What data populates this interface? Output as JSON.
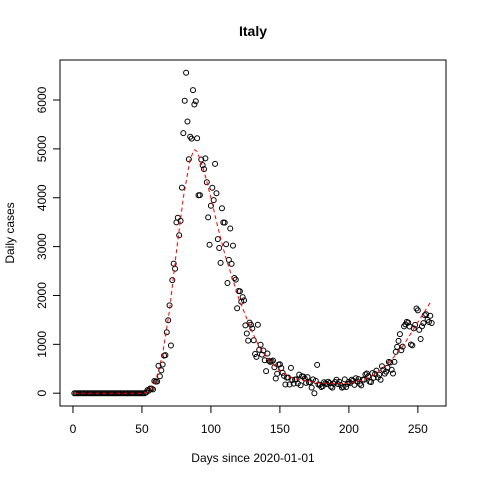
{
  "chart_data": {
    "type": "scatter",
    "title": "Italy",
    "xlabel": "Days since 2020-01-01",
    "ylabel": "Daily cases",
    "xlim": [
      -9.4,
      270.4
    ],
    "ylim": [
      -262,
      6819
    ],
    "xticks": [
      0,
      50,
      100,
      150,
      200,
      250
    ],
    "yticks": [
      0,
      1000,
      2000,
      3000,
      4000,
      5000,
      6000
    ],
    "series": [
      {
        "type": "scatter",
        "color": "#000000",
        "x": [
          1,
          2,
          3,
          4,
          5,
          6,
          7,
          8,
          9,
          10,
          11,
          12,
          13,
          14,
          15,
          16,
          17,
          18,
          19,
          20,
          21,
          22,
          23,
          24,
          25,
          26,
          27,
          28,
          29,
          30,
          31,
          32,
          33,
          34,
          35,
          36,
          37,
          38,
          39,
          40,
          41,
          42,
          43,
          44,
          45,
          46,
          47,
          48,
          49,
          50,
          51,
          52,
          53,
          54,
          55,
          56,
          57,
          58,
          59,
          60,
          61,
          62,
          63,
          64,
          65,
          66,
          67,
          68,
          69,
          70,
          71,
          72,
          73,
          74,
          75,
          76,
          77,
          78,
          79,
          80,
          81,
          82,
          83,
          84,
          85,
          86,
          87,
          88,
          89,
          90,
          91,
          92,
          93,
          94,
          95,
          96,
          97,
          98,
          99,
          100,
          101,
          102,
          103,
          104,
          105,
          106,
          107,
          108,
          109,
          110,
          111,
          112,
          113,
          114,
          115,
          116,
          117,
          118,
          119,
          120,
          121,
          122,
          123,
          124,
          125,
          126,
          127,
          128,
          129,
          130,
          131,
          132,
          133,
          134,
          135,
          136,
          137,
          138,
          139,
          140,
          141,
          142,
          143,
          144,
          145,
          146,
          147,
          148,
          149,
          150,
          151,
          152,
          153,
          154,
          155,
          156,
          157,
          158,
          159,
          160,
          161,
          162,
          163,
          164,
          165,
          166,
          167,
          168,
          169,
          170,
          171,
          172,
          173,
          174,
          175,
          176,
          177,
          178,
          179,
          180,
          181,
          182,
          183,
          184,
          185,
          186,
          187,
          188,
          189,
          190,
          191,
          192,
          193,
          194,
          195,
          196,
          197,
          198,
          199,
          200,
          201,
          202,
          203,
          204,
          205,
          206,
          207,
          208,
          209,
          210,
          211,
          212,
          213,
          214,
          215,
          216,
          217,
          218,
          219,
          220,
          221,
          222,
          223,
          224,
          225,
          226,
          227,
          228,
          229,
          230,
          231,
          232,
          233,
          234,
          235,
          236,
          237,
          238,
          239,
          240,
          241,
          242,
          243,
          244,
          245,
          246,
          247,
          248,
          249,
          250,
          251,
          252,
          253,
          254,
          255,
          256,
          257,
          258,
          259,
          260
        ],
        "values": [
          0,
          0,
          0,
          0,
          0,
          0,
          0,
          0,
          0,
          0,
          0,
          0,
          0,
          0,
          0,
          0,
          0,
          0,
          0,
          0,
          0,
          0,
          0,
          0,
          0,
          0,
          0,
          0,
          0,
          0,
          0,
          0,
          0,
          0,
          0,
          0,
          0,
          0,
          0,
          0,
          0,
          0,
          0,
          0,
          0,
          0,
          0,
          0,
          0,
          0,
          0,
          0,
          14,
          62,
          53,
          97,
          93,
          78,
          250,
          238,
          240,
          561,
          347,
          466,
          587,
          769,
          778,
          1247,
          1492,
          1797,
          977,
          2313,
          2651,
          2547,
          3497,
          3590,
          3233,
          3526,
          4207,
          5322,
          5986,
          6557,
          5560,
          4789,
          5249,
          5210,
          6203,
          5909,
          5974,
          5217,
          4050,
          4053,
          4782,
          4668,
          4585,
          4805,
          4316,
          3599,
          3039,
          3836,
          4204,
          3951,
          4694,
          4092,
          3153,
          2972,
          2667,
          3786,
          3493,
          3491,
          3047,
          2256,
          2729,
          3370,
          2646,
          3021,
          2357,
          2324,
          1739,
          2091,
          2086,
          1872,
          1965,
          1900,
          1389,
          1221,
          1075,
          1444,
          1401,
          1327,
          1083,
          802,
          744,
          1402,
          888,
          992,
          789,
          875,
          675,
          451,
          813,
          665,
          642,
          652,
          669,
          531,
          300,
          397,
          584,
          593,
          516,
          416,
          355,
          178,
          318,
          321,
          177,
          518,
          270,
          197,
          280,
          283,
          202,
          379,
          163,
          346,
          338,
          301,
          210,
          328,
          224,
          221,
          113,
          282,
          0,
          252,
          580,
          175,
          174,
          126,
          142,
          223,
          201,
          188,
          234,
          208,
          138,
          114,
          193,
          229,
          276,
          188,
          234,
          169,
          114,
          129,
          282,
          128,
          190,
          230,
          212,
          275,
          255,
          170,
          306,
          239,
          289,
          190,
          159,
          279,
          274,
          384,
          402,
          347,
          238,
          226,
          412,
          317,
          394,
          463,
          320,
          379,
          274,
          552,
          481,
          401,
          442,
          522,
          640,
          629,
          479,
          403,
          642,
          845,
          947,
          1071,
          1210,
          878,
          953,
          1367,
          1409,
          1460,
          1444,
          1365,
          996,
          978,
          1326,
          1397,
          1733,
          1694,
          1297,
          1108,
          1370,
          1434,
          1597,
          1616,
          1501,
          1458,
          1585,
          1437
        ]
      },
      {
        "type": "line",
        "color": "#ff0000",
        "dashed": true,
        "x": [
          1,
          50,
          55,
          60,
          65,
          70,
          75,
          80,
          85,
          88,
          90,
          95,
          100,
          105,
          110,
          115,
          120,
          125,
          130,
          135,
          140,
          150,
          160,
          170,
          180,
          190,
          200,
          210,
          220,
          230,
          240,
          250,
          260
        ],
        "values": [
          0,
          0,
          30,
          250,
          800,
          1700,
          2900,
          4000,
          4800,
          4980,
          4950,
          4550,
          4000,
          3400,
          2850,
          2400,
          1950,
          1600,
          1250,
          950,
          750,
          450,
          300,
          250,
          200,
          200,
          200,
          270,
          400,
          650,
          1000,
          1450,
          1900
        ]
      }
    ]
  }
}
